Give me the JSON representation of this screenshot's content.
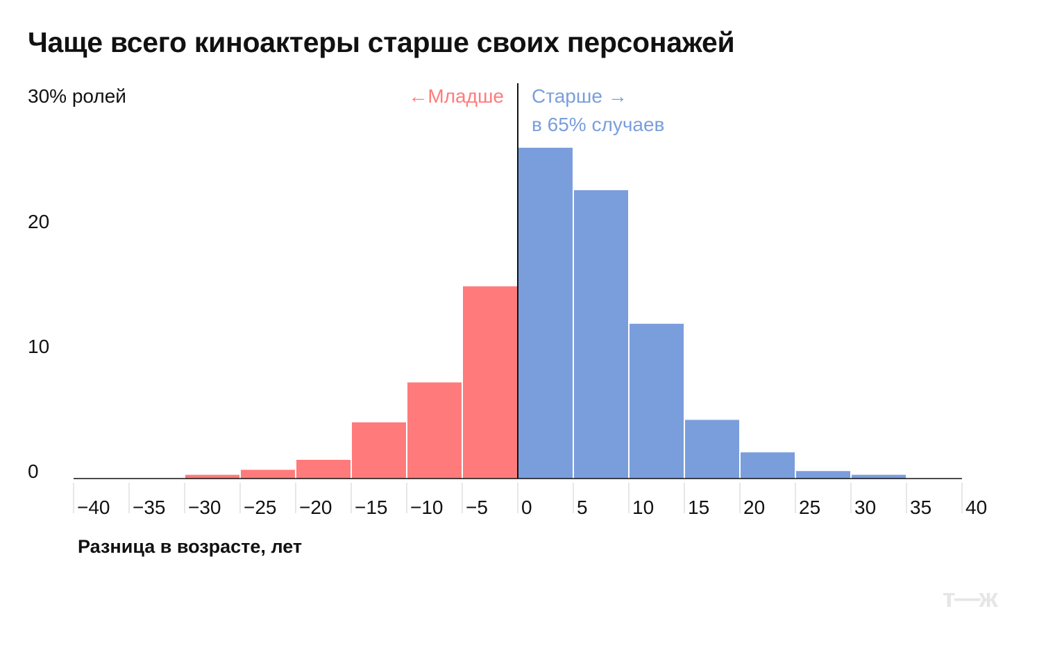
{
  "title": "Чаще всего киноактеры старше своих персонажей",
  "brand": {
    "logo_text": "т—ж"
  },
  "chart_data": {
    "type": "bar",
    "title": "Чаще всего киноактеры старше своих персонажей",
    "xlabel": "Разница в возрасте, лет",
    "ylabel": "30% ролей",
    "xlim": [
      -40,
      40
    ],
    "ylim": [
      0,
      30
    ],
    "x_ticks": [
      "−40",
      "−35",
      "−30",
      "−25",
      "−20",
      "−15",
      "−10",
      "−5",
      "0",
      "5",
      "10",
      "15",
      "20",
      "25",
      "30",
      "35",
      "40"
    ],
    "y_ticks": [
      "0",
      "10",
      "20"
    ],
    "annotations": {
      "younger": "←Младше",
      "older": "Старше →",
      "older_share": "в 65% случаев"
    },
    "colors": {
      "younger": "#ff7b7b",
      "older": "#7a9edc",
      "axis": "#111111"
    },
    "bins": [
      {
        "from": -40,
        "to": -35,
        "value": 0
      },
      {
        "from": -35,
        "to": -30,
        "value": 0
      },
      {
        "from": -30,
        "to": -25,
        "value": 0.3
      },
      {
        "from": -25,
        "to": -20,
        "value": 0.7
      },
      {
        "from": -20,
        "to": -15,
        "value": 1.5
      },
      {
        "from": -15,
        "to": -10,
        "value": 4.5
      },
      {
        "from": -10,
        "to": -5,
        "value": 7.7
      },
      {
        "from": -5,
        "to": 0,
        "value": 15.4
      },
      {
        "from": 0,
        "to": 5,
        "value": 26.5
      },
      {
        "from": 5,
        "to": 10,
        "value": 23.1
      },
      {
        "from": 10,
        "to": 15,
        "value": 12.4
      },
      {
        "from": 15,
        "to": 20,
        "value": 4.7
      },
      {
        "from": 20,
        "to": 25,
        "value": 2.1
      },
      {
        "from": 25,
        "to": 30,
        "value": 0.6
      },
      {
        "from": 30,
        "to": 35,
        "value": 0.3
      },
      {
        "from": 35,
        "to": 40,
        "value": 0
      }
    ]
  }
}
